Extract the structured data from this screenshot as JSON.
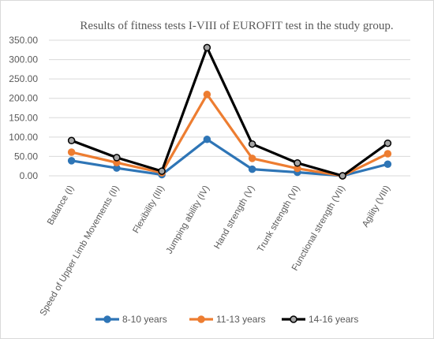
{
  "chart_data": {
    "type": "line",
    "title": "Results of fitness tests I-VIII of EUROFIT test in the study group.",
    "categories": [
      "Balance (I)",
      "Speed of Upper Limb Movements (II)",
      "Flexibility (III)",
      "Jumping ability (IV)",
      "Hand strength (V)",
      "Trunk strength (VI)",
      "Functional strength (VII)",
      "Agility (VIII)"
    ],
    "y_ticks": [
      "0.00",
      "50.00",
      "100.00",
      "150.00",
      "200.00",
      "250.00",
      "300.00",
      "350.00"
    ],
    "ylim": [
      0,
      350
    ],
    "grid": true,
    "legend_position": "bottom",
    "series": [
      {
        "name": "8-10 years",
        "color": "#2e75b6",
        "marker_fill": "#2e75b6",
        "values": [
          39,
          20,
          3,
          94,
          17,
          9,
          0,
          30
        ]
      },
      {
        "name": "11-13 years",
        "color": "#ed7d31",
        "marker_fill": "#ed7d31",
        "values": [
          61,
          34,
          8,
          210,
          45,
          19,
          0,
          57
        ]
      },
      {
        "name": "14-16 years",
        "color": "#000000",
        "marker_fill": "#a5a5a5",
        "values": [
          91,
          47,
          12,
          331,
          82,
          33,
          0,
          84
        ]
      }
    ]
  }
}
